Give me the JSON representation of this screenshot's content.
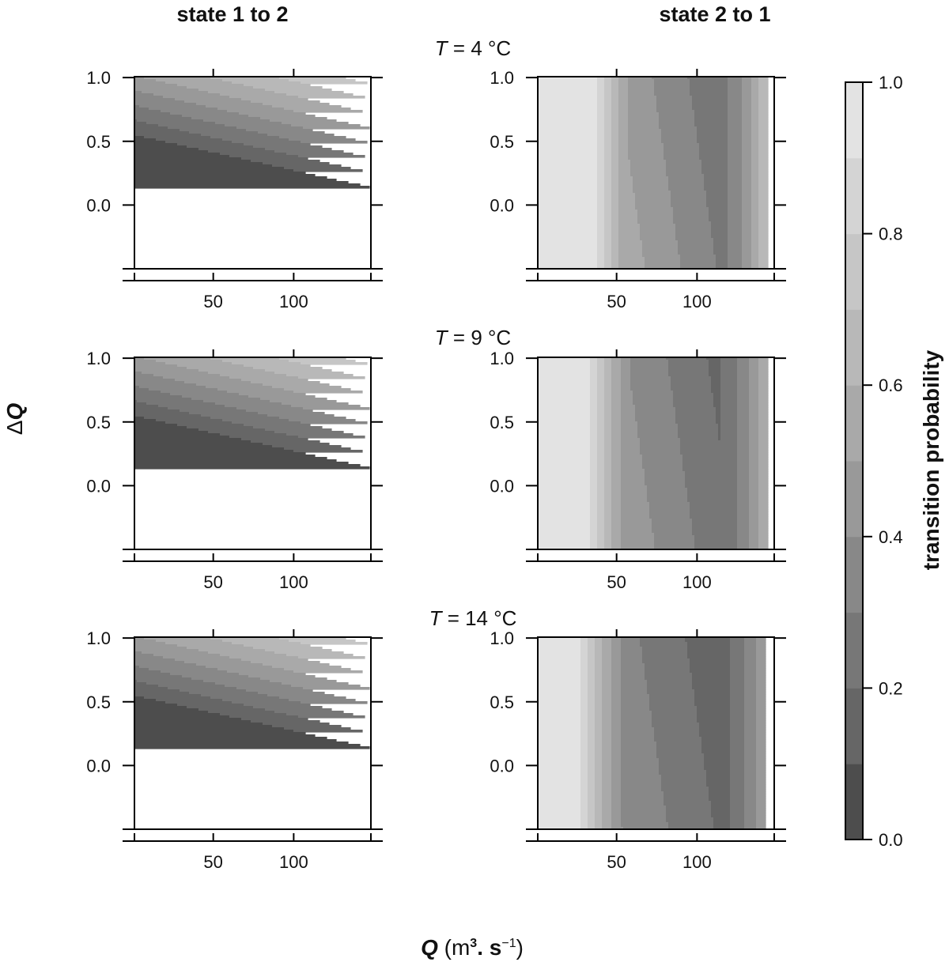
{
  "column_titles": [
    "state 1 to 2",
    "state 2 to 1"
  ],
  "row_labels": [
    {
      "symbol": "T",
      "eq": " = 4 °C"
    },
    {
      "symbol": "T",
      "eq": " = 9 °C"
    },
    {
      "symbol": "T",
      "eq": " = 14 °C"
    }
  ],
  "ylabel": {
    "prefix": "Δ",
    "main": "Q"
  },
  "xlabel": {
    "main": "Q",
    "open": " (m",
    "sup1": "3",
    "mid": ". s",
    "sup2": "−1",
    "close": ")"
  },
  "colorbar": {
    "label": "transition probability"
  },
  "chart_data": {
    "type": "heatmap",
    "panels": [
      {
        "column": "state 1 to 2",
        "row": "T = 4 °C",
        "model": "s12",
        "temp": 4
      },
      {
        "column": "state 2 to 1",
        "row": "T = 4 °C",
        "model": "s21",
        "temp": 4
      },
      {
        "column": "state 1 to 2",
        "row": "T = 9 °C",
        "model": "s12",
        "temp": 9
      },
      {
        "column": "state 2 to 1",
        "row": "T = 9 °C",
        "model": "s21",
        "temp": 9
      },
      {
        "column": "state 1 to 2",
        "row": "T = 14 °C",
        "model": "s12",
        "temp": 14
      },
      {
        "column": "state 2 to 1",
        "row": "T = 14 °C",
        "model": "s21",
        "temp": 14
      }
    ],
    "x_range": [
      1,
      148
    ],
    "y_range": [
      -0.5,
      1.1
    ],
    "x_ticks": [
      50,
      100
    ],
    "x_tick_labels": [
      "50",
      "100"
    ],
    "y_ticks": [
      0.0,
      0.5,
      1.0
    ],
    "y_tick_labels": [
      "0.0",
      "0.5",
      "1.0"
    ],
    "colorbar_range": [
      0.0,
      1.0
    ],
    "colorbar_ticks": [
      0.0,
      0.2,
      0.4,
      0.6,
      0.8,
      1.0
    ],
    "colorbar_tick_labels": [
      "0.0",
      "0.2",
      "0.4",
      "0.6",
      "0.8",
      "1.0"
    ],
    "levels": [
      0.0,
      0.1,
      0.2,
      0.3,
      0.4,
      0.5,
      0.6,
      0.7,
      0.8,
      0.9,
      1.0
    ],
    "level_colors": [
      "#4d4d4d",
      "#666666",
      "#777777",
      "#888888",
      "#999999",
      "#a9a9a9",
      "#b8b8b8",
      "#c6c6c6",
      "#d4d4d4",
      "#e3e3e3"
    ],
    "grid": false
  }
}
